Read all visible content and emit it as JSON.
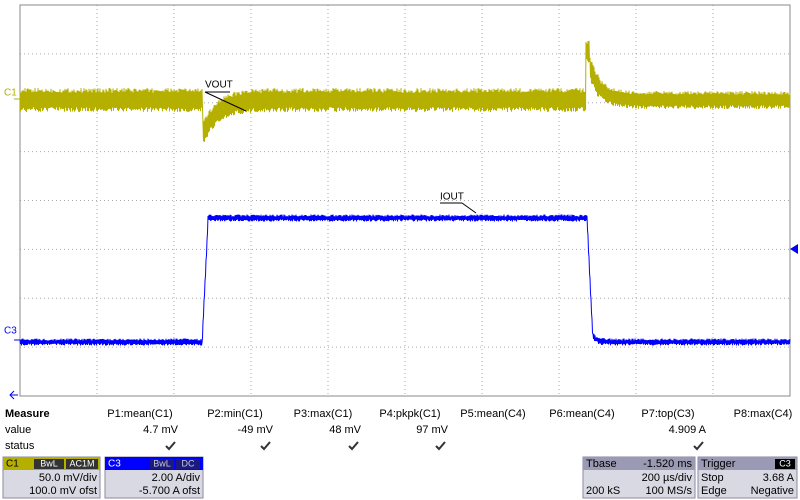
{
  "traces": {
    "c1_marker": "C1",
    "c3_marker": "C3",
    "vout": "VOUT",
    "iout": "IOUT"
  },
  "measure": {
    "title": "Measure",
    "headers": [
      "P1:mean(C1)",
      "P2:min(C1)",
      "P3:max(C1)",
      "P4:pkpk(C1)",
      "P5:mean(C4)",
      "P6:mean(C4)",
      "P7:top(C3)",
      "P8:max(C4)"
    ],
    "row_labels": [
      "value",
      "status"
    ],
    "values": [
      "4.7 mV",
      "-49 mV",
      "48 mV",
      "97 mV",
      null,
      null,
      "4.909 A",
      null
    ],
    "status_checked": [
      true,
      true,
      true,
      true,
      false,
      false,
      true,
      false
    ]
  },
  "channels": [
    {
      "label": "C1",
      "tags": [
        "BwL",
        "AC1M"
      ],
      "scale": "50.0 mV/div",
      "offset": "100.0 mV ofst"
    },
    {
      "label": "C3",
      "tags": [
        "BwL",
        "DC"
      ],
      "scale": "2.00 A/div",
      "offset": "-5.700 A ofst"
    }
  ],
  "timebase": {
    "title": "Tbase",
    "delay": "-1.520 ms",
    "scale": "200 µs/div",
    "samples": "200 kS",
    "rate": "100 MS/s"
  },
  "trigger": {
    "title": "Trigger",
    "source": "C3",
    "mode": "Stop",
    "level": "3.68 A",
    "type": "Edge",
    "slope": "Negative"
  }
}
